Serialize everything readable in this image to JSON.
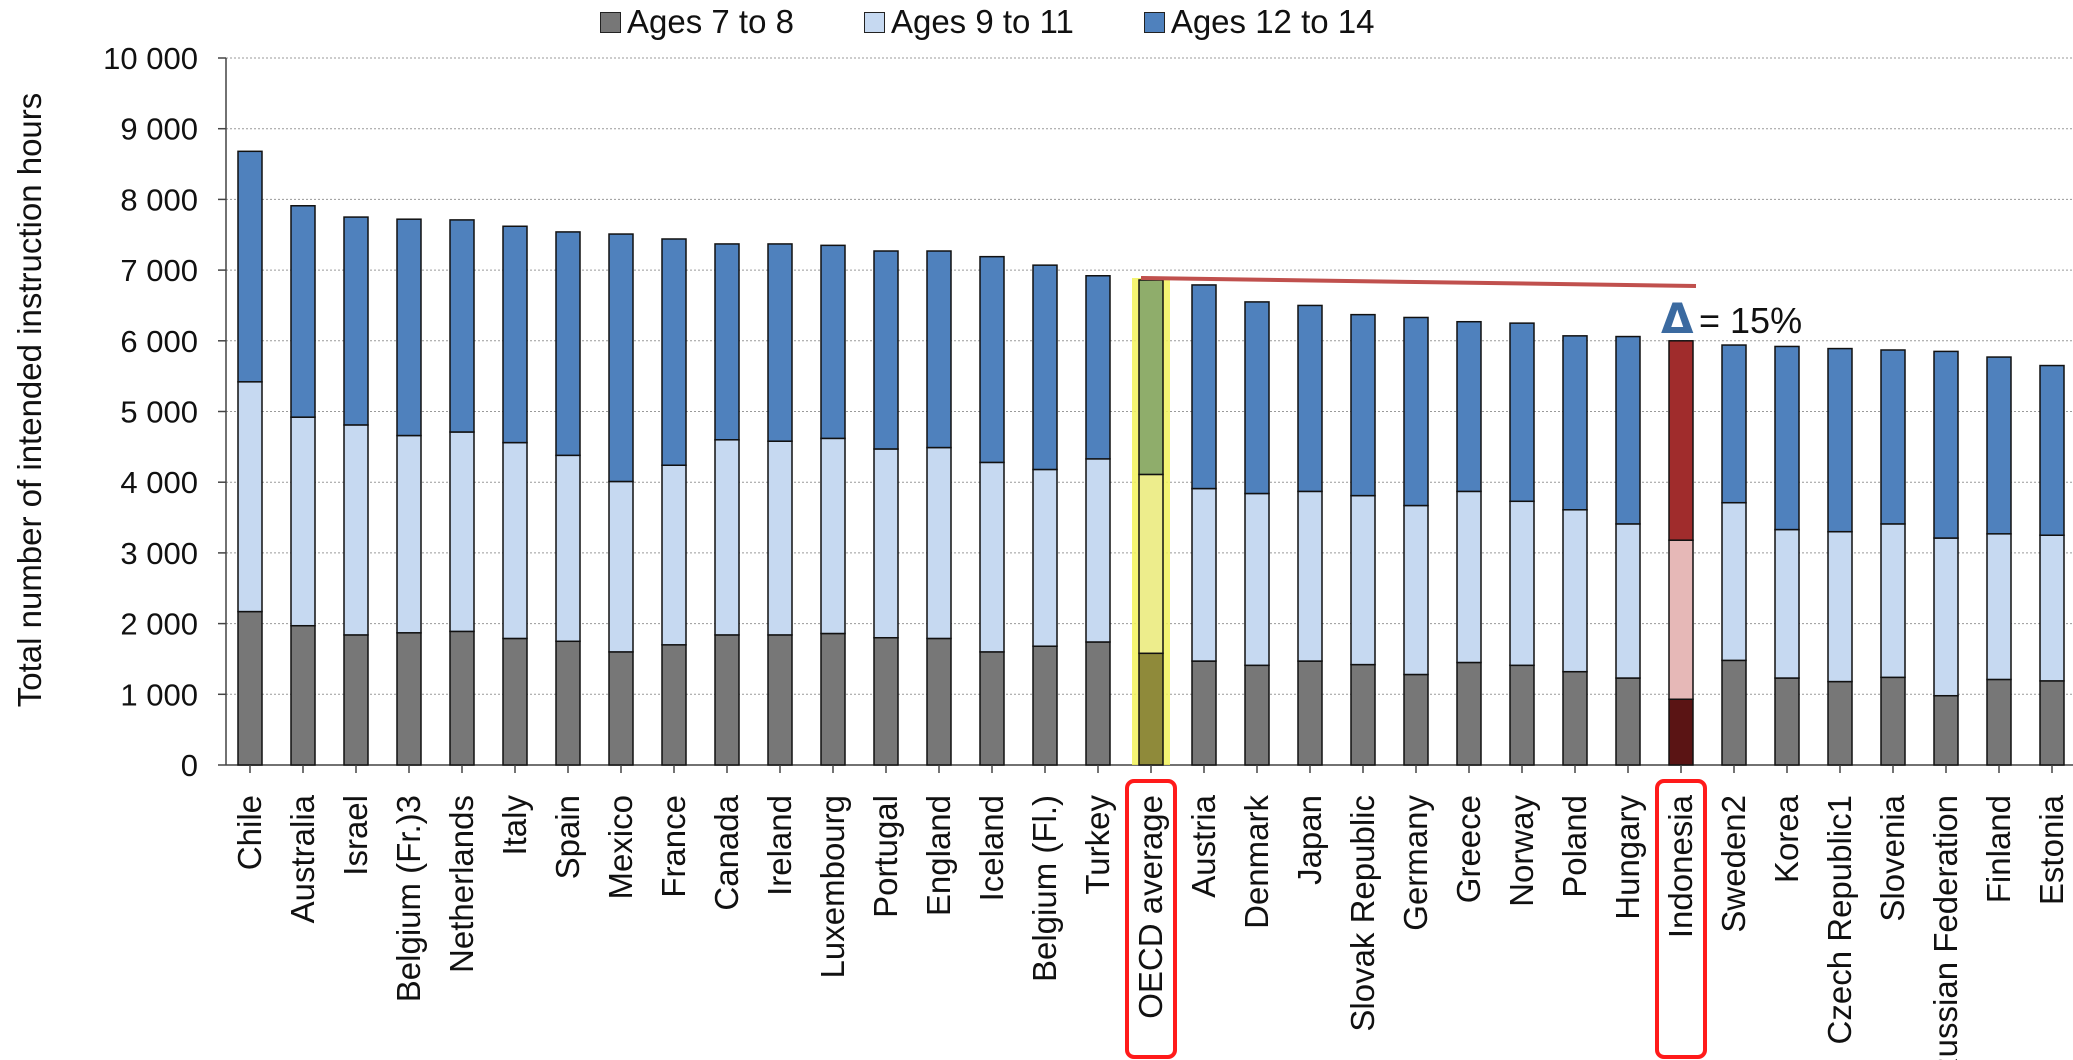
{
  "chart_data": {
    "type": "bar",
    "stacked": true,
    "title": "",
    "xlabel": "",
    "ylabel": "Total number of intended instruction hours",
    "ylim": [
      0,
      10000
    ],
    "yticks": [
      0,
      1000,
      2000,
      3000,
      4000,
      5000,
      6000,
      7000,
      8000,
      9000,
      10000
    ],
    "ytick_labels": [
      "0",
      "1 000",
      "2 000",
      "3 000",
      "4 000",
      "5 000",
      "6 000",
      "7 000",
      "8 000",
      "9 000",
      "10 000"
    ],
    "grid": true,
    "legend_position": "top",
    "categories": [
      "Chile",
      "Australia",
      "Israel",
      "Belgium (Fr.)3",
      "Netherlands",
      "Italy",
      "Spain",
      "Mexico",
      "France",
      "Canada",
      "Ireland",
      "Luxembourg",
      "Portugal",
      "England",
      "Iceland",
      "Belgium (Fl.)",
      "Turkey",
      "OECD average",
      "Austria",
      "Denmark",
      "Japan",
      "Slovak Republic",
      "Germany",
      "Greece",
      "Norway",
      "Poland",
      "Hungary",
      "Indonesia",
      "Sweden2",
      "Korea",
      "Czech Republic1",
      "Slovenia",
      "Russian Federation",
      "Finland",
      "Estonia"
    ],
    "series": [
      {
        "name": "Ages 7 to 8",
        "color": "#777777",
        "values": [
          2170,
          1970,
          1840,
          1870,
          1890,
          1790,
          1750,
          1600,
          1700,
          1840,
          1840,
          1860,
          1800,
          1790,
          1600,
          1680,
          1740,
          1580,
          1470,
          1410,
          1470,
          1420,
          1280,
          1450,
          1410,
          1320,
          1230,
          930,
          1480,
          1230,
          1180,
          1240,
          980,
          1210,
          1190
        ]
      },
      {
        "name": "Ages 9 to 11",
        "color": "#c6d9f1",
        "values": [
          3250,
          2950,
          2970,
          2790,
          2820,
          2770,
          2630,
          2410,
          2540,
          2760,
          2740,
          2760,
          2670,
          2700,
          2680,
          2500,
          2590,
          2530,
          2440,
          2430,
          2400,
          2390,
          2390,
          2420,
          2320,
          2290,
          2180,
          2250,
          2230,
          2100,
          2120,
          2170,
          2230,
          2060,
          2060
        ]
      },
      {
        "name": "Ages 12 to 14",
        "color": "#4f81bd",
        "values": [
          3260,
          2990,
          2940,
          3060,
          3000,
          3060,
          3160,
          3500,
          3200,
          2770,
          2790,
          2730,
          2800,
          2780,
          2910,
          2890,
          2590,
          2750,
          2880,
          2710,
          2630,
          2560,
          2660,
          2400,
          2520,
          2460,
          2650,
          2820,
          2230,
          2590,
          2590,
          2460,
          2640,
          2500,
          2400
        ]
      }
    ],
    "highlights": [
      {
        "category": "OECD average",
        "colors": [
          "#8f8a3a",
          "#eded8c",
          "#8fad6b"
        ]
      },
      {
        "category": "Indonesia",
        "colors": [
          "#5a1414",
          "#e6b8b7",
          "#a02c2c"
        ]
      }
    ],
    "annotation": {
      "text": "= 15%",
      "symbol": "Δ",
      "from": "OECD average",
      "to": "Indonesia"
    },
    "boxed_categories": [
      "OECD average",
      "Indonesia"
    ]
  }
}
